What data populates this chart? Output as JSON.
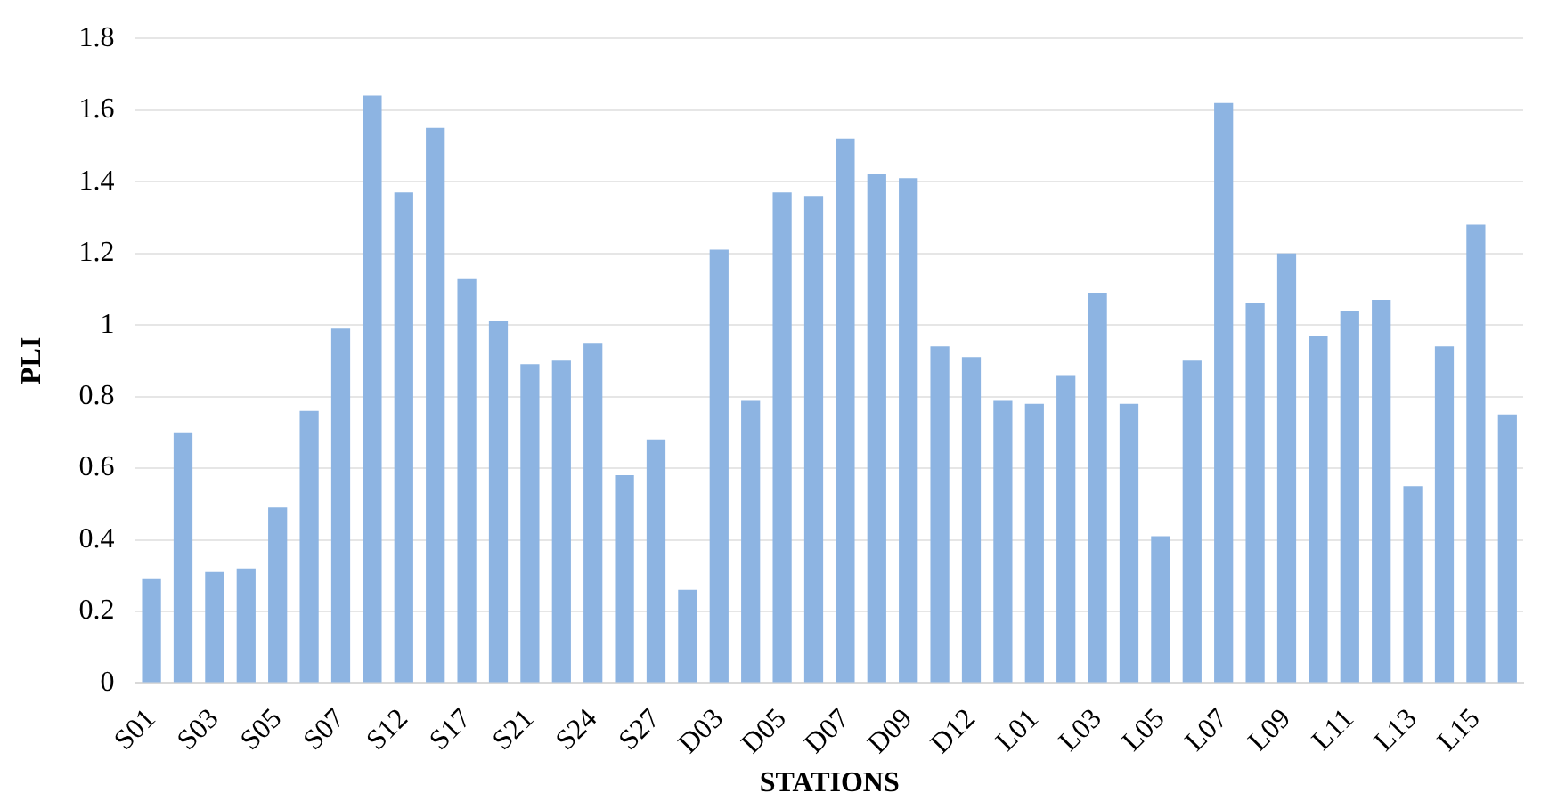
{
  "chart_data": {
    "type": "bar",
    "xlabel": "STATIONS",
    "ylabel": "PLI",
    "categories": [
      "S01",
      null,
      "S03",
      null,
      "S05",
      null,
      "S07",
      null,
      "S12",
      null,
      "S17",
      null,
      "S21",
      null,
      "S24",
      null,
      "S27",
      null,
      "D03",
      null,
      "D05",
      null,
      "D07",
      null,
      "D09",
      null,
      "D12",
      null,
      "L01",
      null,
      "L03",
      null,
      "L05",
      null,
      "L07",
      null,
      "L09",
      null,
      "L11",
      null,
      "L13",
      null,
      "L15",
      null
    ],
    "values": [
      0.29,
      0.7,
      0.31,
      0.32,
      0.49,
      0.76,
      0.99,
      1.64,
      1.37,
      1.55,
      1.13,
      1.01,
      0.89,
      0.9,
      0.95,
      0.58,
      0.68,
      0.26,
      1.21,
      0.79,
      1.37,
      1.36,
      1.52,
      1.42,
      1.41,
      0.94,
      0.91,
      0.79,
      0.78,
      0.86,
      1.09,
      0.78,
      0.41,
      0.9,
      1.62,
      1.06,
      1.2,
      0.97,
      1.04,
      1.07,
      0.55,
      0.94,
      1.28,
      0.75
    ],
    "color": "#8db4e2",
    "ylim": [
      0,
      1.8
    ],
    "yticks": [
      0,
      0.2,
      0.4,
      0.6,
      0.8,
      1,
      1.2,
      1.4,
      1.6,
      1.8
    ],
    "grid": "y",
    "legend": false
  }
}
